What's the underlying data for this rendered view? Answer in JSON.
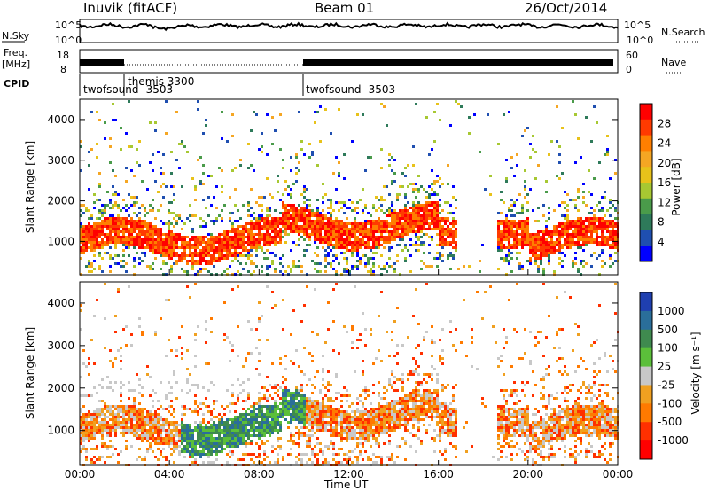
{
  "header": {
    "station": "Inuvik (fitACF)",
    "beam": "Beam 01",
    "date": "26/Oct/2014"
  },
  "top_panels": {
    "nsky_label": "N.Sky",
    "nsearch_label": "N.Search",
    "nsky_ticks": [
      "10^5",
      "10^0"
    ],
    "nsearch_ticks": [
      "10^5",
      "10^0"
    ],
    "freq_label_1": "Freq.",
    "freq_label_2": "[MHz]",
    "freq_ticks": [
      "18",
      "8"
    ],
    "nave_label": "Nave",
    "nave_ticks": [
      "60",
      "0"
    ],
    "cpid_label": "CPID",
    "cpid_segments": [
      {
        "name": "twofsound -3503",
        "start_hour": 0,
        "end_hour": 2
      },
      {
        "name": "themis 3300",
        "start_hour": 2,
        "end_hour": 10
      },
      {
        "name": "twofsound -3503",
        "start_hour": 10,
        "end_hour": 24
      }
    ]
  },
  "chart_data": [
    {
      "type": "heatmap",
      "title": "",
      "xlabel": "",
      "ylabel": "Slant Range [km]",
      "xlim": [
        0,
        24
      ],
      "ylim": [
        180,
        4500
      ],
      "yticks": [
        "1000",
        "2000",
        "3000",
        "4000"
      ],
      "colorbar": {
        "label": "Power [dB]",
        "ticks": [
          "28",
          "24",
          "20",
          "16",
          "12",
          "8",
          "4"
        ],
        "colors": [
          "#ff0000",
          "#ff3a00",
          "#ff7f00",
          "#f5a623",
          "#e8c21a",
          "#a7c832",
          "#4a9b4a",
          "#2e7a5a",
          "#1f4fb0",
          "#0000ff"
        ]
      }
    },
    {
      "type": "heatmap",
      "title": "",
      "xlabel": "Time UT",
      "ylabel": "Slant Range [km]",
      "xlim": [
        0,
        24
      ],
      "ylim": [
        180,
        4500
      ],
      "yticks": [
        "1000",
        "2000",
        "3000",
        "4000"
      ],
      "xticks": [
        "00:00",
        "04:00",
        "08:00",
        "12:00",
        "16:00",
        "20:00",
        "00:00"
      ],
      "colorbar": {
        "label": "Velocity [m s⁻¹]",
        "ticks": [
          "1000",
          "500",
          "100",
          "25",
          "-25",
          "-100",
          "-500",
          "-1000"
        ],
        "colors": [
          "#1f3fb0",
          "#2a6e9a",
          "#3f8a4f",
          "#5bbf3a",
          "#c8c8c8",
          "#f0a020",
          "#ff7a00",
          "#ff3000",
          "#ff0000"
        ]
      }
    }
  ]
}
